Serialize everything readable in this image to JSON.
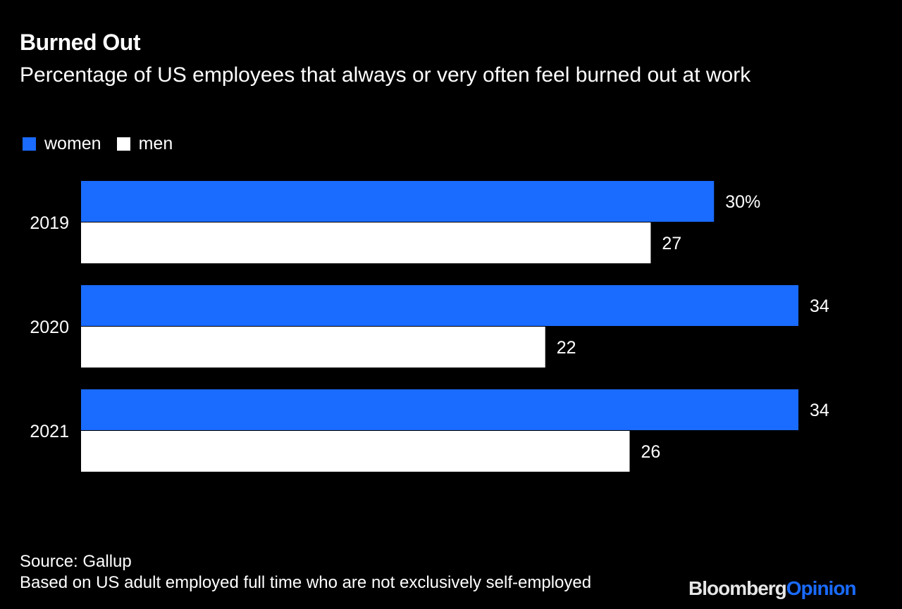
{
  "chart_data": {
    "type": "bar",
    "orientation": "horizontal",
    "title": "Burned Out",
    "subtitle": "Percentage of US employees that always or very often feel burned out at work",
    "categories": [
      "2019",
      "2020",
      "2021"
    ],
    "series": [
      {
        "name": "women",
        "values": [
          30,
          34,
          34
        ],
        "color": "#1a6bff",
        "labels": [
          "30%",
          "34",
          "34"
        ]
      },
      {
        "name": "men",
        "values": [
          27,
          22,
          26
        ],
        "color": "#ffffff",
        "labels": [
          "27",
          "22",
          "26"
        ]
      }
    ],
    "xlim": [
      0,
      34
    ],
    "grid": false,
    "legend": "top-left"
  },
  "footer": {
    "source": "Source: Gallup",
    "note": "Based on US adult employed full time who are not exclusively self-employed"
  },
  "logo": {
    "part1": "Bloomberg",
    "part2": "Opinion",
    "color1": "#e6e6e6",
    "color2": "#1a6bff"
  },
  "background": "#000000"
}
